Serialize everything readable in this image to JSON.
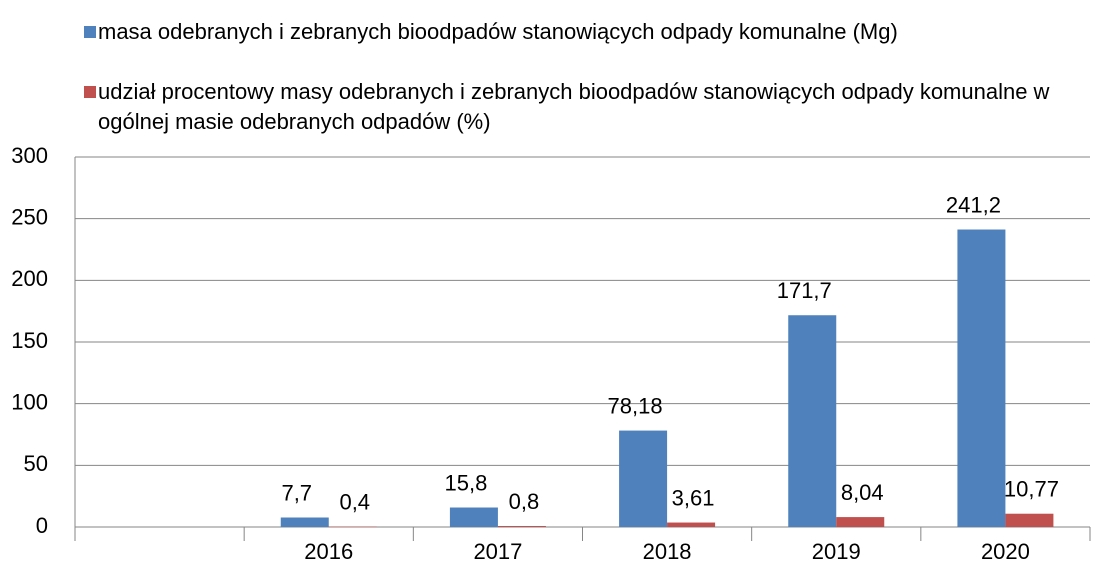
{
  "chart_data": {
    "type": "bar",
    "categories": [
      null,
      "2016",
      "2017",
      "2018",
      "2019",
      "2020"
    ],
    "series": [
      {
        "name": "masa odebranych i zebranych bioodpadów stanowiących odpady komunalne (Mg)",
        "color": "#4f81bd",
        "values": [
          null,
          7.7,
          15.8,
          78.18,
          171.7,
          241.2
        ],
        "value_labels": [
          null,
          "7,7",
          "15,8",
          "78,18",
          "171,7",
          "241,2"
        ]
      },
      {
        "name": "udział procentowy masy odebranych i zebranych bioodpadów stanowiących odpady komunalne w ogólnej masie odebranych odpadów (%)",
        "color": "#c0504d",
        "values": [
          null,
          0.4,
          0.8,
          3.61,
          8.04,
          10.77
        ],
        "value_labels": [
          null,
          "0,4",
          "0,8",
          "3,61",
          "8,04",
          "10,77"
        ]
      }
    ],
    "ylim": [
      0,
      300
    ],
    "yticks": [
      0,
      50,
      100,
      150,
      200,
      250,
      300
    ],
    "grid": true,
    "legend": "top"
  }
}
